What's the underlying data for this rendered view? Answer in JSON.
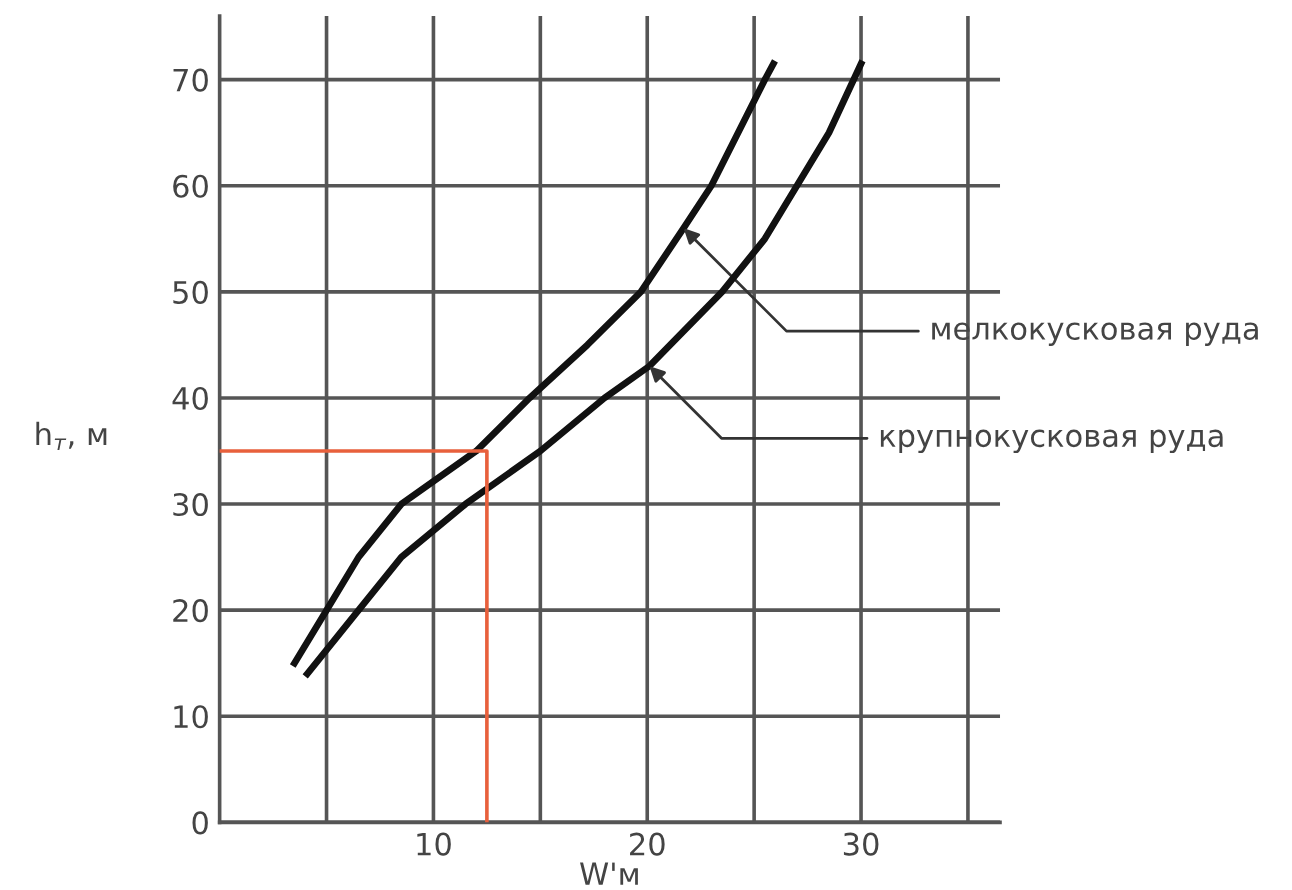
{
  "chart_data": {
    "type": "line",
    "xlabel": "W'м",
    "ylabel": "h$_{т}$, м",
    "xlim": [
      0,
      36.5
    ],
    "ylim": [
      0,
      76
    ],
    "xticks": [
      {
        "value": 5,
        "label": null
      },
      10,
      {
        "value": 15,
        "label": null
      },
      20,
      {
        "value": 25,
        "label": null
      },
      30,
      {
        "value": 35,
        "label": null
      }
    ],
    "yticks": [
      0,
      10,
      20,
      30,
      40,
      50,
      60,
      70
    ],
    "grid": true,
    "legend": false,
    "marker": "none",
    "line_style": "solid",
    "series": [
      {
        "name": "мелкокусковая руда",
        "color": "#111111",
        "x": [
          3.5,
          5,
          6.5,
          8.5,
          12,
          14.5,
          17.2,
          19.7,
          21.7,
          23,
          25.5,
          25.9
        ],
        "values": [
          15,
          20,
          25,
          30,
          35,
          40,
          45,
          50,
          56,
          60,
          70,
          71.5
        ]
      },
      {
        "name": "крупнокусковая руда",
        "color": "#111111",
        "x": [
          4.1,
          6.5,
          8.5,
          11.5,
          15,
          18,
          20.1,
          23.5,
          25.5,
          27,
          28.5,
          30
        ],
        "values": [
          14,
          20,
          25,
          30,
          35,
          40,
          43,
          50,
          55,
          60,
          65,
          71.5
        ]
      },
      {
        "color": "#e8603c",
        "x": [
          0,
          12.5,
          12.5
        ],
        "values": [
          35,
          35,
          0
        ]
      }
    ]
  }
}
